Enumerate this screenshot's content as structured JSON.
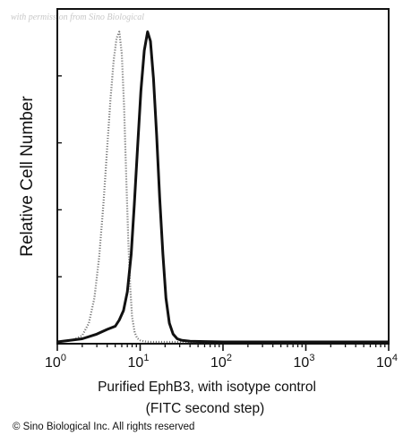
{
  "watermark": "with permission from Sino Biological",
  "copyright": "© Sino Biological Inc. All rights reserved",
  "chart_data": {
    "type": "area",
    "title": "",
    "ylabel": "Relative Cell Number",
    "xlabel_lines": [
      "Purified EphB3, with isotype control",
      "(FITC second step)"
    ],
    "xscale": "log",
    "xlim": [
      1,
      10000
    ],
    "ylim": [
      0,
      1
    ],
    "x_ticks": [
      {
        "value": 1,
        "base": "10",
        "exp": "0"
      },
      {
        "value": 10,
        "base": "10",
        "exp": "1"
      },
      {
        "value": 100,
        "base": "10",
        "exp": "2"
      },
      {
        "value": 1000,
        "base": "10",
        "exp": "3"
      },
      {
        "value": 10000,
        "base": "10",
        "exp": "4"
      }
    ],
    "grid": false,
    "legend": "none",
    "series": [
      {
        "role": "isotype control",
        "style": "dotted",
        "color": "#7a7a7a",
        "x": [
          1,
          1.5,
          2.0,
          2.4,
          2.8,
          3.2,
          3.6,
          4.0,
          4.4,
          4.8,
          5.2,
          5.6,
          6.0,
          6.4,
          6.8,
          7.2,
          7.6,
          8.0,
          8.6,
          9.2,
          10,
          11,
          13,
          20,
          10000
        ],
        "y": [
          0,
          0.005,
          0.02,
          0.06,
          0.14,
          0.27,
          0.44,
          0.62,
          0.78,
          0.9,
          0.97,
          0.99,
          0.92,
          0.75,
          0.52,
          0.32,
          0.17,
          0.08,
          0.03,
          0.012,
          0.005,
          0.002,
          0,
          0,
          0
        ]
      },
      {
        "role": "EphB3",
        "style": "solid",
        "color": "#111111",
        "x": [
          1,
          2,
          3,
          4,
          5,
          5.6,
          6.3,
          7.0,
          7.8,
          8.5,
          9.3,
          10.2,
          11.2,
          12.3,
          13.3,
          14.5,
          15.8,
          17.2,
          18.8,
          20.5,
          22.5,
          25,
          28,
          32,
          40,
          60,
          100,
          1000,
          10000
        ],
        "y": [
          0,
          0.01,
          0.025,
          0.04,
          0.05,
          0.07,
          0.1,
          0.16,
          0.28,
          0.44,
          0.62,
          0.8,
          0.93,
          0.99,
          0.96,
          0.84,
          0.66,
          0.46,
          0.28,
          0.14,
          0.06,
          0.025,
          0.01,
          0.005,
          0.002,
          0.001,
          0,
          0,
          0
        ]
      }
    ]
  }
}
